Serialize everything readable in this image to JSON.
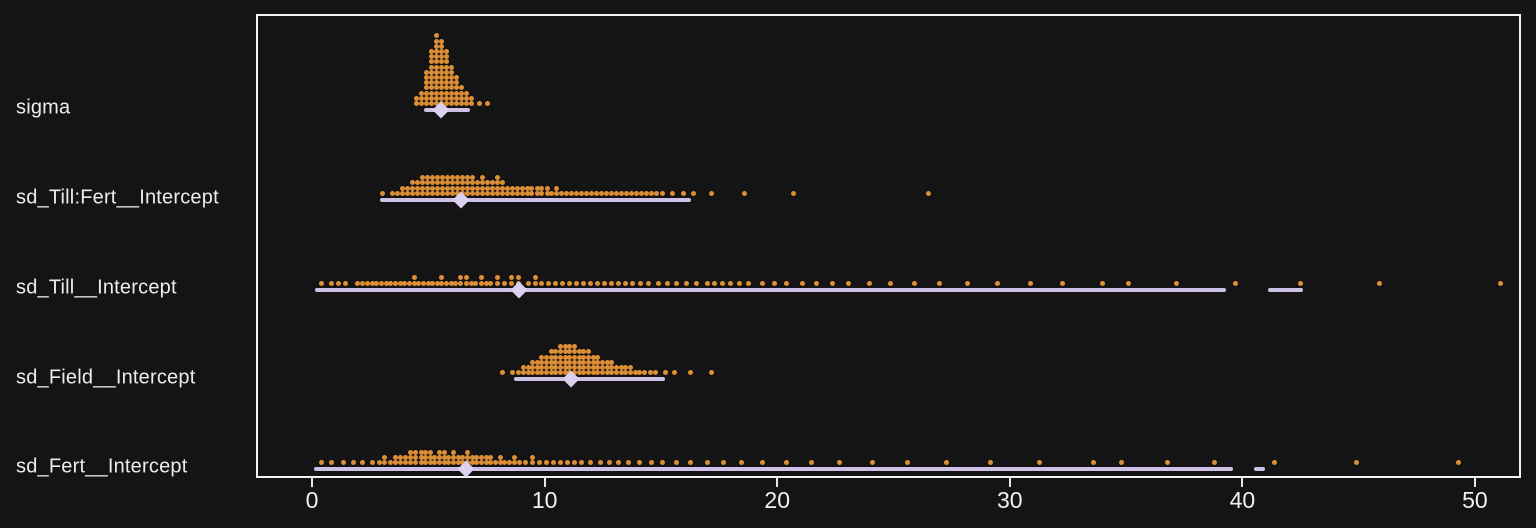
{
  "chart_data": {
    "type": "dotsinterval",
    "title": "",
    "xlabel": "",
    "ylabel": "",
    "xlim": [
      -2.41,
      51.98
    ],
    "x_ticks": [
      0,
      10,
      20,
      30,
      40,
      50
    ],
    "legend": "none",
    "grid": false,
    "colors": {
      "dot": "#de8f35",
      "interval": "#ccc0e5",
      "diamond": "#dccff0",
      "background": "#141414",
      "panel_border": "#f2f2f2",
      "text": "#ececec",
      "tick": "#e8e8e8"
    },
    "rows": [
      {
        "label": "sigma",
        "point": 5.45,
        "interval": [
          4.72,
          6.72
        ],
        "dots": [
          [
            4.42,
            2
          ],
          [
            4.64,
            3
          ],
          [
            4.85,
            7
          ],
          [
            5.07,
            11
          ],
          [
            5.28,
            14
          ],
          [
            5.5,
            13
          ],
          [
            5.71,
            11
          ],
          [
            5.93,
            8
          ],
          [
            6.14,
            6
          ],
          [
            6.36,
            4
          ],
          [
            6.57,
            3
          ],
          [
            6.79,
            2
          ],
          [
            7.1,
            1
          ],
          [
            7.44,
            1
          ]
        ]
      },
      {
        "label": "sd_Till:Fert__Intercept",
        "point": 6.3,
        "interval": [
          2.85,
          16.2
        ],
        "dots": [
          [
            2.95,
            1
          ],
          [
            3.38,
            1
          ],
          [
            3.6,
            1
          ],
          [
            3.81,
            2
          ],
          [
            4.02,
            2
          ],
          [
            4.24,
            3
          ],
          [
            4.45,
            3
          ],
          [
            4.67,
            4
          ],
          [
            4.88,
            4
          ],
          [
            5.09,
            4
          ],
          [
            5.31,
            4
          ],
          [
            5.52,
            4
          ],
          [
            5.74,
            4
          ],
          [
            5.95,
            4
          ],
          [
            6.16,
            4
          ],
          [
            6.38,
            4
          ],
          [
            6.59,
            4
          ],
          [
            6.81,
            4
          ],
          [
            7.02,
            3
          ],
          [
            7.23,
            4
          ],
          [
            7.45,
            3
          ],
          [
            7.66,
            3
          ],
          [
            7.88,
            4
          ],
          [
            8.09,
            3
          ],
          [
            8.3,
            2
          ],
          [
            8.52,
            2
          ],
          [
            8.73,
            2
          ],
          [
            8.95,
            2
          ],
          [
            9.16,
            2
          ],
          [
            9.37,
            2
          ],
          [
            9.59,
            2
          ],
          [
            9.8,
            2
          ],
          [
            10.02,
            2
          ],
          [
            10.23,
            1
          ],
          [
            10.44,
            2
          ],
          [
            10.66,
            1
          ],
          [
            10.87,
            1
          ],
          [
            11.09,
            1
          ],
          [
            11.3,
            1
          ],
          [
            11.51,
            1
          ],
          [
            11.73,
            1
          ],
          [
            11.94,
            1
          ],
          [
            12.16,
            1
          ],
          [
            12.37,
            1
          ],
          [
            12.58,
            1
          ],
          [
            12.8,
            1
          ],
          [
            13.01,
            1
          ],
          [
            13.23,
            1
          ],
          [
            13.44,
            1
          ],
          [
            13.65,
            1
          ],
          [
            13.87,
            1
          ],
          [
            14.08,
            1
          ],
          [
            14.3,
            1
          ],
          [
            14.51,
            1
          ],
          [
            14.72,
            1
          ],
          [
            15.0,
            1
          ],
          [
            15.4,
            1
          ],
          [
            15.9,
            1
          ],
          [
            16.3,
            1
          ],
          [
            17.1,
            1
          ],
          [
            18.5,
            1
          ],
          [
            20.6,
            1
          ],
          [
            26.4,
            1
          ]
        ]
      },
      {
        "label": "sd_Till__Intercept",
        "point": 8.8,
        "interval": [
          0.05,
          39.2
        ],
        "interval2": [
          41.0,
          42.5
        ],
        "dots": [
          [
            0.3,
            1
          ],
          [
            0.75,
            1
          ],
          [
            1.05,
            1
          ],
          [
            1.35,
            1
          ],
          [
            1.85,
            1
          ],
          [
            2.1,
            1
          ],
          [
            2.3,
            1
          ],
          [
            2.5,
            1
          ],
          [
            2.7,
            1
          ],
          [
            2.9,
            1
          ],
          [
            3.1,
            1
          ],
          [
            3.3,
            1
          ],
          [
            3.5,
            1
          ],
          [
            3.7,
            1
          ],
          [
            3.9,
            1
          ],
          [
            4.1,
            1
          ],
          [
            4.3,
            2
          ],
          [
            4.5,
            1
          ],
          [
            4.7,
            1
          ],
          [
            4.9,
            1
          ],
          [
            5.1,
            1
          ],
          [
            5.3,
            1
          ],
          [
            5.5,
            2
          ],
          [
            5.7,
            1
          ],
          [
            5.9,
            1
          ],
          [
            6.1,
            1
          ],
          [
            6.3,
            2
          ],
          [
            6.55,
            2
          ],
          [
            6.75,
            1
          ],
          [
            6.95,
            1
          ],
          [
            7.2,
            2
          ],
          [
            7.4,
            1
          ],
          [
            7.6,
            1
          ],
          [
            7.9,
            2
          ],
          [
            8.2,
            1
          ],
          [
            8.5,
            2
          ],
          [
            8.8,
            2
          ],
          [
            9.2,
            1
          ],
          [
            9.5,
            2
          ],
          [
            9.8,
            1
          ],
          [
            10.1,
            1
          ],
          [
            10.4,
            1
          ],
          [
            10.7,
            1
          ],
          [
            11.0,
            1
          ],
          [
            11.3,
            1
          ],
          [
            11.6,
            1
          ],
          [
            11.9,
            1
          ],
          [
            12.2,
            1
          ],
          [
            12.5,
            1
          ],
          [
            12.8,
            1
          ],
          [
            13.1,
            1
          ],
          [
            13.4,
            1
          ],
          [
            13.7,
            1
          ],
          [
            14.05,
            1
          ],
          [
            14.4,
            1
          ],
          [
            14.8,
            1
          ],
          [
            15.2,
            1
          ],
          [
            15.6,
            1
          ],
          [
            16.0,
            1
          ],
          [
            16.45,
            1
          ],
          [
            16.9,
            1
          ],
          [
            17.2,
            1
          ],
          [
            17.55,
            1
          ],
          [
            17.9,
            1
          ],
          [
            18.3,
            1
          ],
          [
            18.7,
            1
          ],
          [
            19.3,
            1
          ],
          [
            19.8,
            1
          ],
          [
            20.3,
            1
          ],
          [
            21.0,
            1
          ],
          [
            21.6,
            1
          ],
          [
            22.3,
            1
          ],
          [
            23.0,
            1
          ],
          [
            23.9,
            1
          ],
          [
            24.8,
            1
          ],
          [
            25.8,
            1
          ],
          [
            26.9,
            1
          ],
          [
            28.1,
            1
          ],
          [
            29.4,
            1
          ],
          [
            30.8,
            1
          ],
          [
            32.2,
            1
          ],
          [
            33.9,
            1
          ],
          [
            35.0,
            1
          ],
          [
            37.1,
            1
          ],
          [
            39.6,
            1
          ],
          [
            42.4,
            1
          ],
          [
            45.8,
            1
          ],
          [
            51.0,
            1
          ]
        ]
      },
      {
        "label": "sd_Field__Intercept",
        "point": 11.05,
        "interval": [
          8.6,
          15.1
        ],
        "dots": [
          [
            8.1,
            1
          ],
          [
            8.55,
            1
          ],
          [
            8.8,
            1
          ],
          [
            9.0,
            2
          ],
          [
            9.2,
            2
          ],
          [
            9.4,
            3
          ],
          [
            9.6,
            3
          ],
          [
            9.8,
            4
          ],
          [
            10.0,
            4
          ],
          [
            10.2,
            5
          ],
          [
            10.4,
            5
          ],
          [
            10.6,
            6
          ],
          [
            10.8,
            6
          ],
          [
            11.0,
            6
          ],
          [
            11.2,
            6
          ],
          [
            11.4,
            5
          ],
          [
            11.6,
            5
          ],
          [
            11.8,
            5
          ],
          [
            12.0,
            4
          ],
          [
            12.2,
            4
          ],
          [
            12.4,
            3
          ],
          [
            12.6,
            3
          ],
          [
            12.8,
            3
          ],
          [
            13.0,
            2
          ],
          [
            13.2,
            2
          ],
          [
            13.4,
            2
          ],
          [
            13.6,
            2
          ],
          [
            13.8,
            1
          ],
          [
            14.0,
            1
          ],
          [
            14.2,
            1
          ],
          [
            14.45,
            1
          ],
          [
            14.7,
            1
          ],
          [
            15.1,
            1
          ],
          [
            15.5,
            1
          ],
          [
            16.2,
            1
          ],
          [
            17.1,
            1
          ]
        ]
      },
      {
        "label": "sd_Fert__Intercept",
        "point": 6.55,
        "interval": [
          0.0,
          39.5
        ],
        "interval2": [
          40.4,
          40.9
        ],
        "dots": [
          [
            0.3,
            1
          ],
          [
            0.75,
            1
          ],
          [
            1.25,
            1
          ],
          [
            1.7,
            1
          ],
          [
            2.1,
            1
          ],
          [
            2.5,
            1
          ],
          [
            2.8,
            1
          ],
          [
            3.05,
            2
          ],
          [
            3.3,
            1
          ],
          [
            3.5,
            2
          ],
          [
            3.7,
            2
          ],
          [
            3.95,
            2
          ],
          [
            4.15,
            3
          ],
          [
            4.35,
            3
          ],
          [
            4.6,
            3
          ],
          [
            4.8,
            3
          ],
          [
            5.0,
            3
          ],
          [
            5.2,
            2
          ],
          [
            5.4,
            3
          ],
          [
            5.6,
            3
          ],
          [
            5.8,
            2
          ],
          [
            6.0,
            3
          ],
          [
            6.2,
            2
          ],
          [
            6.4,
            2
          ],
          [
            6.6,
            3
          ],
          [
            6.8,
            2
          ],
          [
            7.0,
            2
          ],
          [
            7.2,
            2
          ],
          [
            7.4,
            2
          ],
          [
            7.6,
            2
          ],
          [
            7.8,
            1
          ],
          [
            8.0,
            2
          ],
          [
            8.2,
            1
          ],
          [
            8.4,
            1
          ],
          [
            8.6,
            2
          ],
          [
            8.85,
            1
          ],
          [
            9.1,
            1
          ],
          [
            9.4,
            2
          ],
          [
            9.7,
            1
          ],
          [
            10.0,
            1
          ],
          [
            10.3,
            1
          ],
          [
            10.6,
            1
          ],
          [
            10.9,
            1
          ],
          [
            11.2,
            1
          ],
          [
            11.5,
            1
          ],
          [
            11.9,
            1
          ],
          [
            12.3,
            1
          ],
          [
            12.7,
            1
          ],
          [
            13.1,
            1
          ],
          [
            13.5,
            1
          ],
          [
            14.0,
            1
          ],
          [
            14.5,
            1
          ],
          [
            15.0,
            1
          ],
          [
            15.6,
            1
          ],
          [
            16.2,
            1
          ],
          [
            16.9,
            1
          ],
          [
            17.6,
            1
          ],
          [
            18.4,
            1
          ],
          [
            19.3,
            1
          ],
          [
            20.3,
            1
          ],
          [
            21.4,
            1
          ],
          [
            22.6,
            1
          ],
          [
            24.0,
            1
          ],
          [
            25.5,
            1
          ],
          [
            27.2,
            1
          ],
          [
            29.1,
            1
          ],
          [
            31.2,
            1
          ],
          [
            33.5,
            1
          ],
          [
            34.7,
            1
          ],
          [
            36.7,
            1
          ],
          [
            38.7,
            1
          ],
          [
            41.3,
            1
          ],
          [
            44.8,
            1
          ],
          [
            49.2,
            1
          ]
        ]
      }
    ]
  }
}
